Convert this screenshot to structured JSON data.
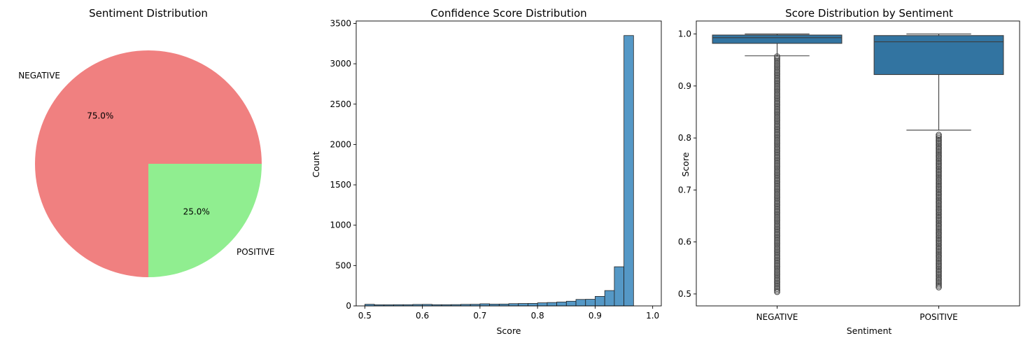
{
  "chart_data": [
    {
      "type": "pie",
      "title": "Sentiment Distribution",
      "labels": [
        "NEGATIVE",
        "POSITIVE"
      ],
      "values": [
        75.0,
        25.0
      ],
      "pct_labels": [
        "75.0%",
        "25.0%"
      ],
      "colors": [
        "#f08080",
        "#90ee90"
      ]
    },
    {
      "type": "bar",
      "title": "Confidence Score Distribution",
      "xlabel": "Score",
      "ylabel": "Count",
      "bin_start": 0.5,
      "bin_width": 0.01667,
      "values": [
        20,
        14,
        14,
        15,
        15,
        18,
        19,
        15,
        15,
        16,
        19,
        20,
        26,
        22,
        23,
        28,
        30,
        31,
        38,
        42,
        48,
        58,
        80,
        82,
        118,
        190,
        485,
        3350
      ],
      "xlim": [
        0.485,
        1.015
      ],
      "ylim": [
        0,
        3530
      ],
      "xticks": [
        0.5,
        0.6,
        0.7,
        0.8,
        0.9,
        1.0
      ],
      "xtick_labels": [
        "0.5",
        "0.6",
        "0.7",
        "0.8",
        "0.9",
        "1.0"
      ],
      "yticks": [
        0,
        500,
        1000,
        1500,
        2000,
        2500,
        3000,
        3500
      ],
      "ytick_labels": [
        "0",
        "500",
        "1000",
        "1500",
        "2000",
        "2500",
        "3000",
        "3500"
      ],
      "bar_color": "#4c92c3"
    },
    {
      "type": "box",
      "title": "Score Distribution by Sentiment",
      "xlabel": "Sentiment",
      "ylabel": "Score",
      "categories": [
        "NEGATIVE",
        "POSITIVE"
      ],
      "ylim": [
        0.477,
        1.025
      ],
      "yticks": [
        0.5,
        0.6,
        0.7,
        0.8,
        0.9,
        1.0
      ],
      "ytick_labels": [
        "0.5",
        "0.6",
        "0.7",
        "0.8",
        "0.9",
        "1.0"
      ],
      "box_color": "#3274a1",
      "series": [
        {
          "name": "NEGATIVE",
          "q1": 0.982,
          "median": 0.993,
          "q3": 0.998,
          "whisker_low": 0.958,
          "whisker_high": 1.0,
          "outlier_range": [
            0.501,
            0.957
          ]
        },
        {
          "name": "POSITIVE",
          "q1": 0.922,
          "median": 0.985,
          "q3": 0.997,
          "whisker_low": 0.815,
          "whisker_high": 1.0,
          "outlier_range": [
            0.51,
            0.806
          ]
        }
      ]
    }
  ]
}
